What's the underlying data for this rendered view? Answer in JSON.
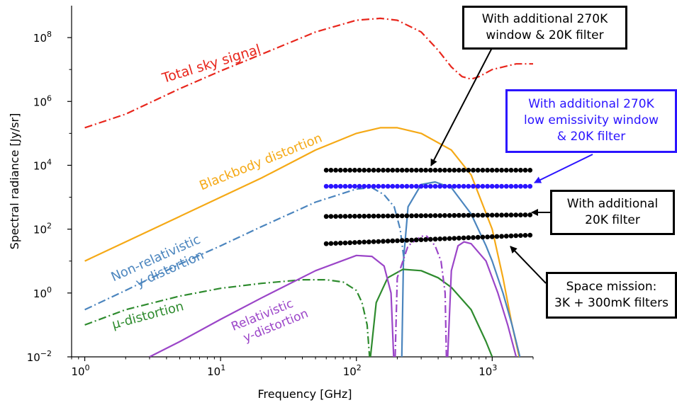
{
  "chart_data": {
    "type": "line",
    "xlabel": "Frequency [GHz]",
    "ylabel": "Spectral radiance [Jy/sr]",
    "xscale": "log",
    "yscale": "log",
    "xlim": [
      0.8,
      2000
    ],
    "ylim": [
      0.01,
      1000000000
    ],
    "xticks": [
      {
        "value": 1,
        "label": "10",
        "exp": "0"
      },
      {
        "value": 10,
        "label": "10",
        "exp": "1"
      },
      {
        "value": 100,
        "label": "10",
        "exp": "2"
      },
      {
        "value": 1000,
        "label": "10",
        "exp": "3"
      }
    ],
    "yticks": [
      {
        "value": 0.01,
        "label": "10",
        "exp": "−2"
      },
      {
        "value": 1,
        "label": "10",
        "exp": "0"
      },
      {
        "value": 100,
        "label": "10",
        "exp": "2"
      },
      {
        "value": 10000,
        "label": "10",
        "exp": "4"
      },
      {
        "value": 1000000,
        "label": "10",
        "exp": "6"
      },
      {
        "value": 100000000,
        "label": "10",
        "exp": "8"
      }
    ],
    "grid": false,
    "series": [
      {
        "name": "Total sky signal",
        "color": "#e8261c",
        "style": "dashdot",
        "label_text": "Total sky signal",
        "points": [
          [
            1,
            150000
          ],
          [
            2,
            400000
          ],
          [
            5,
            2500000
          ],
          [
            10,
            9000000
          ],
          [
            20,
            30000000
          ],
          [
            50,
            150000000
          ],
          [
            100,
            350000000
          ],
          [
            150,
            400000000
          ],
          [
            200,
            350000000
          ],
          [
            300,
            150000000
          ],
          [
            400,
            40000000
          ],
          [
            500,
            12000000
          ],
          [
            600,
            6000000
          ],
          [
            700,
            5000000
          ],
          [
            800,
            6000000
          ],
          [
            1000,
            10000000
          ],
          [
            1500,
            15000000
          ],
          [
            2000,
            15000000
          ]
        ]
      },
      {
        "name": "Blackbody distortion",
        "color": "#f5a916",
        "style": "solid",
        "label_text": "Blackbody distortion",
        "points": [
          [
            1,
            10
          ],
          [
            2,
            40
          ],
          [
            5,
            250
          ],
          [
            10,
            1000
          ],
          [
            20,
            4000
          ],
          [
            50,
            30000
          ],
          [
            100,
            100000
          ],
          [
            150,
            150000
          ],
          [
            200,
            150000
          ],
          [
            300,
            100000
          ],
          [
            500,
            30000
          ],
          [
            700,
            5000
          ],
          [
            1000,
            100
          ],
          [
            1200,
            3
          ],
          [
            1400,
            0.1
          ],
          [
            1600,
            0.008
          ]
        ]
      },
      {
        "name": "Non-relativistic y-distortion",
        "color": "#4b85be",
        "style": "dashdot",
        "label_text": [
          "Non-relativistic",
          "y-distortion"
        ],
        "points": [
          [
            1,
            0.3
          ],
          [
            2,
            1.2
          ],
          [
            5,
            8
          ],
          [
            10,
            30
          ],
          [
            20,
            120
          ],
          [
            50,
            700
          ],
          [
            100,
            1800
          ],
          [
            130,
            2000
          ],
          [
            160,
            1200
          ],
          [
            190,
            500
          ],
          [
            210,
            100
          ],
          [
            225,
            10
          ]
        ]
      },
      {
        "name": "Non-relativistic y-distortion (positive)",
        "color": "#4b85be",
        "style": "solid",
        "points": [
          [
            216,
            0.01
          ],
          [
            222,
            10
          ],
          [
            240,
            500
          ],
          [
            300,
            2500
          ],
          [
            380,
            3000
          ],
          [
            500,
            2000
          ],
          [
            700,
            300
          ],
          [
            900,
            30
          ],
          [
            1000,
            10
          ],
          [
            1200,
            1
          ],
          [
            1400,
            0.1
          ],
          [
            1600,
            0.01
          ]
        ]
      },
      {
        "name": "μ-distortion",
        "color": "#2e8b2e",
        "style": "dashdot",
        "label_text": "μ-distortion",
        "points": [
          [
            1,
            0.1
          ],
          [
            2,
            0.3
          ],
          [
            5,
            0.8
          ],
          [
            10,
            1.4
          ],
          [
            20,
            2
          ],
          [
            40,
            2.6
          ],
          [
            60,
            2.6
          ],
          [
            80,
            2.2
          ],
          [
            100,
            1.2
          ],
          [
            110,
            0.5
          ],
          [
            120,
            0.1
          ],
          [
            125,
            0.01
          ]
        ]
      },
      {
        "name": "μ-distortion (positive)",
        "color": "#2e8b2e",
        "style": "solid",
        "points": [
          [
            127,
            0.01
          ],
          [
            140,
            0.5
          ],
          [
            170,
            3
          ],
          [
            220,
            5.5
          ],
          [
            300,
            5
          ],
          [
            400,
            3
          ],
          [
            500,
            1.5
          ],
          [
            700,
            0.3
          ],
          [
            900,
            0.03
          ],
          [
            1000,
            0.01
          ]
        ]
      },
      {
        "name": "Relativistic y-distortion",
        "color": "#9b45c8",
        "style": "solid",
        "label_text": [
          "Relativistic",
          "y-distortion"
        ],
        "points": [
          [
            3,
            0.01
          ],
          [
            5,
            0.03
          ],
          [
            10,
            0.15
          ],
          [
            20,
            0.7
          ],
          [
            50,
            5
          ],
          [
            100,
            15
          ],
          [
            130,
            14
          ],
          [
            160,
            7
          ],
          [
            180,
            1
          ],
          [
            188,
            0.01
          ]
        ]
      },
      {
        "name": "Relativistic y-distortion (dashed)",
        "color": "#9b45c8",
        "style": "dashdot",
        "points": [
          [
            193,
            0.01
          ],
          [
            200,
            3
          ],
          [
            240,
            30
          ],
          [
            300,
            60
          ],
          [
            330,
            60
          ],
          [
            380,
            30
          ],
          [
            420,
            10
          ],
          [
            450,
            1
          ],
          [
            460,
            0.01
          ]
        ]
      },
      {
        "name": "Relativistic y-distortion (positive)",
        "color": "#9b45c8",
        "style": "solid",
        "points": [
          [
            470,
            0.01
          ],
          [
            500,
            5
          ],
          [
            560,
            30
          ],
          [
            620,
            40
          ],
          [
            700,
            35
          ],
          [
            900,
            10
          ],
          [
            1100,
            1
          ],
          [
            1300,
            0.1
          ],
          [
            1500,
            0.01
          ]
        ]
      }
    ],
    "dot_rows": [
      {
        "color": "#000000",
        "x_start": 60,
        "x_end": 1900,
        "y_start": 7000,
        "y_end": 7000,
        "callout": "With additional 270K window & 20K filter"
      },
      {
        "color": "#2b14ff",
        "x_start": 60,
        "x_end": 1900,
        "y_start": 2200,
        "y_end": 2200,
        "callout": "With additional 270K low emissivity window & 20K filter"
      },
      {
        "color": "#000000",
        "x_start": 60,
        "x_end": 1900,
        "y_start": 250,
        "y_end": 280,
        "callout": "With additional 20K filter"
      },
      {
        "color": "#000000",
        "x_start": 60,
        "x_end": 1900,
        "y_start": 35,
        "y_end": 65,
        "callout": "Space mission: 3K + 300mK filters"
      }
    ]
  },
  "callouts": [
    {
      "lines": [
        "With additional 270K",
        "window & 20K filter"
      ],
      "color": "#000000"
    },
    {
      "lines": [
        "With additional 270K",
        "low emissivity window",
        "& 20K filter"
      ],
      "color": "#2b14ff"
    },
    {
      "lines": [
        "With additional",
        "20K filter"
      ],
      "color": "#000000"
    },
    {
      "lines": [
        "Space mission:",
        "3K + 300mK filters"
      ],
      "color": "#000000"
    }
  ]
}
